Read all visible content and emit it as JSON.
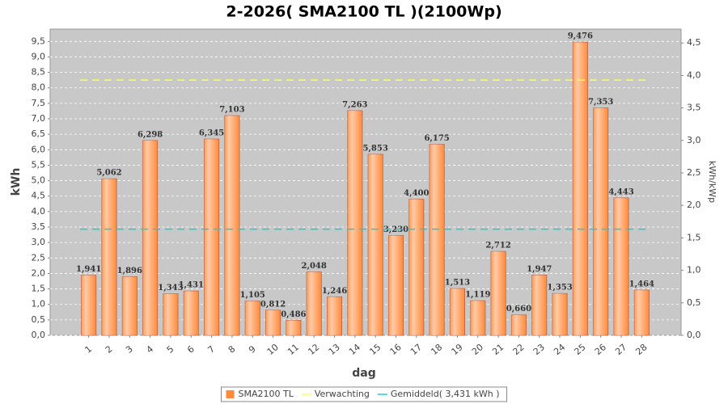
{
  "chart_data": {
    "type": "bar",
    "title": "2-2026( SMA2100 TL )(2100Wp)",
    "x_label": "dag",
    "y_label": "kWh",
    "y2_label": "kWh/kWp",
    "categories": [
      "1",
      "2",
      "3",
      "4",
      "5",
      "6",
      "7",
      "8",
      "9",
      "10",
      "11",
      "12",
      "13",
      "14",
      "15",
      "16",
      "17",
      "18",
      "19",
      "20",
      "21",
      "22",
      "23",
      "24",
      "25",
      "26",
      "27",
      "28"
    ],
    "series": [
      {
        "name": "SMA2100 TL",
        "color": "#ff8a3a",
        "values": [
          1.941,
          5.062,
          1.896,
          6.298,
          1.343,
          1.431,
          6.345,
          7.103,
          1.105,
          0.812,
          0.486,
          2.048,
          1.246,
          7.263,
          5.853,
          3.23,
          4.4,
          6.175,
          1.513,
          1.119,
          2.712,
          0.66,
          1.947,
          1.353,
          9.476,
          7.353,
          4.443,
          1.464
        ],
        "value_labels": [
          "1,941",
          "5,062",
          "1,896",
          "6,298",
          "1,343",
          "1,431",
          "6,345",
          "7,103",
          "1,105",
          "0,812",
          "0,486",
          "2,048",
          "1,246",
          "7,263",
          "5,853",
          "3,230",
          "4,400",
          "6,175",
          "1,513",
          "1,119",
          "2,712",
          "0,660",
          "1,947",
          "1,353",
          "9,476",
          "7,353",
          "4,443",
          "1,464"
        ]
      }
    ],
    "reference_lines": [
      {
        "name": "Verwachting",
        "color": "#ffff55",
        "value": 8.25
      },
      {
        "name": "Gemiddeld( 3,431 kWh )",
        "color": "#22cccc",
        "value": 3.431
      }
    ],
    "ylim": [
      0,
      9.9
    ],
    "yticks": [
      {
        "value": 0,
        "label": "0,0"
      },
      {
        "value": 0.5,
        "label": "0,5"
      },
      {
        "value": 1,
        "label": "1,0"
      },
      {
        "value": 1.5,
        "label": "1,5"
      },
      {
        "value": 2,
        "label": "2,0"
      },
      {
        "value": 2.5,
        "label": "2,5"
      },
      {
        "value": 3,
        "label": "3,0"
      },
      {
        "value": 3.5,
        "label": "3,5"
      },
      {
        "value": 4,
        "label": "4,0"
      },
      {
        "value": 4.5,
        "label": "4,5"
      },
      {
        "value": 5,
        "label": "5,0"
      },
      {
        "value": 5.5,
        "label": "5,5"
      },
      {
        "value": 6,
        "label": "6,0"
      },
      {
        "value": 6.5,
        "label": "6,5"
      },
      {
        "value": 7,
        "label": "7,0"
      },
      {
        "value": 7.5,
        "label": "7,5"
      },
      {
        "value": 8,
        "label": "8,0"
      },
      {
        "value": 8.5,
        "label": "8,5"
      },
      {
        "value": 9,
        "label": "9,0"
      },
      {
        "value": 9.5,
        "label": "9,5"
      }
    ],
    "y2lim": [
      0,
      4.714
    ],
    "y2ticks": [
      {
        "value": 0,
        "label": "0,0"
      },
      {
        "value": 0.5,
        "label": "0,5"
      },
      {
        "value": 1,
        "label": "1,0"
      },
      {
        "value": 1.5,
        "label": "1,5"
      },
      {
        "value": 2,
        "label": "2,0"
      },
      {
        "value": 2.5,
        "label": "2,5"
      },
      {
        "value": 3,
        "label": "3,0"
      },
      {
        "value": 3.5,
        "label": "3,5"
      },
      {
        "value": 4,
        "label": "4,0"
      },
      {
        "value": 4.5,
        "label": "4,5"
      }
    ],
    "grid": true,
    "legend": "bottom"
  }
}
